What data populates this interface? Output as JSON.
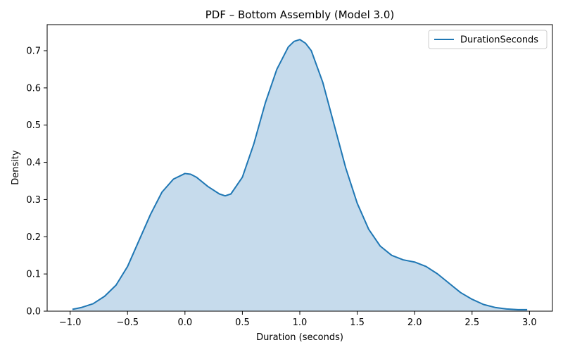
{
  "chart_data": {
    "type": "area",
    "title": "PDF – Bottom Assembly (Model 3.0)",
    "xlabel": "Duration (seconds)",
    "ylabel": "Density",
    "xlim": [
      -1.2,
      3.2
    ],
    "ylim": [
      0,
      0.77
    ],
    "xticks": [
      -1.0,
      -0.5,
      0.0,
      0.5,
      1.0,
      1.5,
      2.0,
      2.5,
      3.0
    ],
    "xtick_labels": [
      "−1.0",
      "−0.5",
      "0.0",
      "0.5",
      "1.0",
      "1.5",
      "2.0",
      "2.5",
      "3.0"
    ],
    "yticks": [
      0.0,
      0.1,
      0.2,
      0.3,
      0.4,
      0.5,
      0.6,
      0.7
    ],
    "ytick_labels": [
      "0.0",
      "0.1",
      "0.2",
      "0.3",
      "0.4",
      "0.5",
      "0.6",
      "0.7"
    ],
    "grid": false,
    "legend_position": "top-right",
    "series": [
      {
        "name": "DurationSeconds",
        "color": "#1f77b4",
        "fill_color": "#c6dbec",
        "x": [
          -0.98,
          -0.9,
          -0.8,
          -0.7,
          -0.6,
          -0.5,
          -0.4,
          -0.3,
          -0.2,
          -0.1,
          0.0,
          0.05,
          0.1,
          0.2,
          0.3,
          0.35,
          0.4,
          0.5,
          0.6,
          0.7,
          0.8,
          0.9,
          0.95,
          1.0,
          1.05,
          1.1,
          1.2,
          1.3,
          1.4,
          1.5,
          1.6,
          1.7,
          1.8,
          1.9,
          2.0,
          2.1,
          2.2,
          2.3,
          2.4,
          2.5,
          2.6,
          2.7,
          2.8,
          2.9,
          2.98
        ],
        "y": [
          0.005,
          0.01,
          0.02,
          0.04,
          0.07,
          0.12,
          0.19,
          0.26,
          0.32,
          0.355,
          0.37,
          0.368,
          0.36,
          0.335,
          0.315,
          0.31,
          0.315,
          0.36,
          0.45,
          0.56,
          0.65,
          0.71,
          0.725,
          0.73,
          0.72,
          0.7,
          0.615,
          0.5,
          0.385,
          0.29,
          0.22,
          0.175,
          0.15,
          0.138,
          0.132,
          0.12,
          0.1,
          0.075,
          0.05,
          0.032,
          0.018,
          0.01,
          0.006,
          0.004,
          0.004
        ]
      }
    ]
  }
}
